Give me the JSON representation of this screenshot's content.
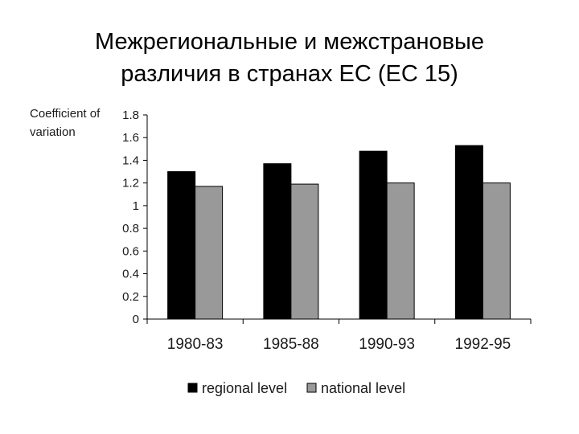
{
  "slide": {
    "title_line1": "Межрегиональные и межстрановые",
    "title_line2": "различия в странах ЕС (ЕС 15)"
  },
  "chart_data": {
    "type": "bar",
    "ylabel_line1": "Coefficient of",
    "ylabel_line2": "variation",
    "xlabel": "",
    "categories": [
      "1980-83",
      "1985-88",
      "1990-93",
      "1992-95"
    ],
    "series": [
      {
        "name": "regional level",
        "values": [
          1.3,
          1.37,
          1.48,
          1.53
        ],
        "color": "#000000"
      },
      {
        "name": "national level",
        "values": [
          1.17,
          1.19,
          1.2,
          1.2
        ],
        "color": "#999999"
      }
    ],
    "ylim": [
      0,
      1.8
    ],
    "yticks": [
      0,
      0.2,
      0.4,
      0.6,
      0.8,
      1,
      1.2,
      1.4,
      1.6,
      1.8
    ],
    "ytick_labels": [
      "0",
      "0.2",
      "0.4",
      "0.6",
      "0.8",
      "1",
      "1.2",
      "1.4",
      "1.6",
      "1.8"
    ],
    "grid": false,
    "legend_position": "bottom"
  }
}
